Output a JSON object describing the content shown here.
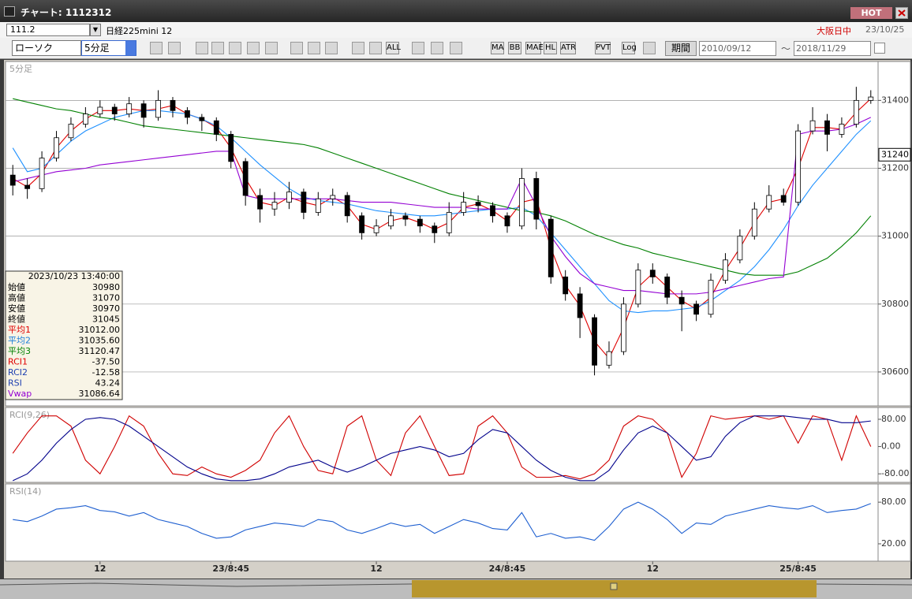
{
  "window": {
    "title": "チャート: 1112312",
    "hot": "HOT"
  },
  "symbol": {
    "code": "111.2",
    "name": "日経225mini 12",
    "session": "大阪日中",
    "date": "23/10/25"
  },
  "toolbar": {
    "chart_style": "ローソク",
    "interval": "5分足",
    "buttons": [
      "ALL",
      "MA",
      "BB",
      "MAE",
      "HL",
      "ATR",
      "PVT",
      "Log"
    ],
    "period": "期間",
    "from": "2010/09/12",
    "separator": "〜",
    "to": "2018/11/29"
  },
  "info_box": {
    "datetime": "2023/10/23 13:40:00",
    "rows": [
      {
        "label": "始値",
        "value": "30980",
        "color": "#000000"
      },
      {
        "label": "高値",
        "value": "31070",
        "color": "#000000"
      },
      {
        "label": "安値",
        "value": "30970",
        "color": "#000000"
      },
      {
        "label": "終値",
        "value": "31045",
        "color": "#000000"
      },
      {
        "label": "平均1",
        "value": "31012.00",
        "color": "#e00000"
      },
      {
        "label": "平均2",
        "value": "31035.60",
        "color": "#1e7fd8"
      },
      {
        "label": "平均3",
        "value": "31120.47",
        "color": "#008000"
      },
      {
        "label": "RCI1",
        "value": "-37.50",
        "color": "#e00000"
      },
      {
        "label": "RCI2",
        "value": "-12.58",
        "color": "#1e3fb0"
      },
      {
        "label": "RSI",
        "value": "43.24",
        "color": "#1e3fb0"
      },
      {
        "label": "Vwap",
        "value": "31086.64",
        "color": "#9400d3"
      }
    ]
  },
  "chart_data": [
    {
      "type": "candlestick",
      "title": "5分足",
      "categories": [
        null,
        null,
        null,
        null,
        null,
        null,
        "12",
        null,
        null,
        null,
        null,
        null,
        null,
        null,
        null,
        "23/8:45",
        null,
        null,
        null,
        null,
        null,
        null,
        null,
        null,
        null,
        "12",
        null,
        null,
        null,
        null,
        null,
        null,
        null,
        null,
        "24/8:45",
        null,
        null,
        null,
        null,
        null,
        null,
        null,
        null,
        null,
        "12",
        null,
        null,
        null,
        null,
        null,
        null,
        null,
        null,
        null,
        "25/8:45",
        null,
        null,
        null,
        null,
        null
      ],
      "open": [
        31180,
        31150,
        31140,
        31230,
        31290,
        31330,
        31360,
        31380,
        31360,
        31390,
        31350,
        31400,
        31370,
        31350,
        31340,
        31300,
        31220,
        31120,
        31080,
        31100,
        31130,
        31070,
        31110,
        31120,
        31060,
        31010,
        31030,
        31060,
        31050,
        31030,
        31010,
        31070,
        31100,
        31090,
        31060,
        31030,
        31170,
        31050,
        30880,
        30830,
        30760,
        30620,
        30660,
        30800,
        30900,
        30880,
        30820,
        30800,
        30770,
        30870,
        30930,
        31000,
        31080,
        31120,
        31100,
        31310,
        31340,
        31300,
        31330,
        31400
      ],
      "high": [
        31210,
        31170,
        31250,
        31310,
        31350,
        31380,
        31400,
        31390,
        31410,
        31400,
        31430,
        31410,
        31380,
        31360,
        31350,
        31310,
        31230,
        31140,
        31130,
        31160,
        31140,
        31130,
        31140,
        31130,
        31070,
        31050,
        31080,
        31070,
        31060,
        31040,
        31100,
        31130,
        31120,
        31100,
        31070,
        31200,
        31190,
        31060,
        30900,
        30850,
        30770,
        30690,
        30820,
        30920,
        30920,
        30890,
        30840,
        30810,
        30890,
        30950,
        31020,
        31100,
        31150,
        31140,
        31330,
        31380,
        31360,
        31350,
        31440,
        31430
      ],
      "low": [
        31120,
        31110,
        31130,
        31220,
        31280,
        31320,
        31350,
        31340,
        31350,
        31320,
        31340,
        31350,
        31330,
        31310,
        31280,
        31200,
        31090,
        31040,
        31060,
        31080,
        31050,
        31060,
        31090,
        31040,
        30990,
        31000,
        31020,
        31030,
        31010,
        30980,
        31000,
        31060,
        31070,
        31040,
        31010,
        31020,
        31020,
        30860,
        30810,
        30700,
        30590,
        30610,
        30650,
        30790,
        30860,
        30800,
        30720,
        30750,
        30760,
        30860,
        30920,
        30990,
        31070,
        31090,
        31090,
        31300,
        31250,
        31290,
        31320,
        31390
      ],
      "close": [
        31150,
        31140,
        31230,
        31290,
        31330,
        31360,
        31380,
        31360,
        31390,
        31350,
        31400,
        31370,
        31350,
        31340,
        31300,
        31220,
        31120,
        31080,
        31100,
        31130,
        31070,
        31110,
        31120,
        31060,
        31010,
        31030,
        31060,
        31050,
        31030,
        31010,
        31070,
        31100,
        31090,
        31060,
        31030,
        31170,
        31050,
        30880,
        30830,
        30760,
        30620,
        30660,
        30800,
        30900,
        30880,
        30820,
        30800,
        30770,
        30870,
        30930,
        31000,
        31080,
        31120,
        31100,
        31310,
        31340,
        31300,
        31330,
        31400,
        31410
      ],
      "up_color": "#ffffff",
      "down_color": "#000000",
      "series": [
        {
          "color": "#e00000",
          "values": [
            31170,
            31145,
            31185,
            31260,
            31310,
            31345,
            31370,
            31370,
            31375,
            31370,
            31375,
            31385,
            31360,
            31345,
            31320,
            31260,
            31170,
            31100,
            31090,
            31115,
            31100,
            31090,
            31115,
            31090,
            31035,
            31020,
            31045,
            31055,
            31040,
            31020,
            31040,
            31085,
            31095,
            31075,
            31045,
            31100,
            31110,
            30965,
            30855,
            30795,
            30690,
            30640,
            30730,
            30850,
            30890,
            30850,
            30810,
            30785,
            30820,
            30900,
            30965,
            31040,
            31100,
            31110,
            31200,
            31320,
            31320,
            31315,
            31365,
            31405
          ]
        },
        {
          "color": "#1e90ff",
          "values": [
            31260,
            31190,
            31200,
            31240,
            31280,
            31310,
            31330,
            31350,
            31360,
            31370,
            31370,
            31365,
            31360,
            31345,
            31325,
            31290,
            31250,
            31210,
            31175,
            31140,
            31115,
            31105,
            31100,
            31095,
            31085,
            31075,
            31070,
            31065,
            31060,
            31060,
            31065,
            31070,
            31075,
            31080,
            31080,
            31085,
            31060,
            31010,
            30960,
            30910,
            30860,
            30810,
            30780,
            30775,
            30780,
            30780,
            30785,
            30790,
            30810,
            30840,
            30870,
            30910,
            30960,
            31020,
            31090,
            31150,
            31200,
            31250,
            31300,
            31340
          ]
        },
        {
          "color": "#008000",
          "values": [
            31405,
            31395,
            31385,
            31375,
            31370,
            31360,
            31350,
            31345,
            31335,
            31325,
            31320,
            31315,
            31310,
            31305,
            31300,
            31295,
            31290,
            31285,
            31280,
            31275,
            31270,
            31260,
            31245,
            31230,
            31215,
            31200,
            31185,
            31170,
            31155,
            31140,
            31125,
            31115,
            31105,
            31095,
            31085,
            31075,
            31070,
            31060,
            31045,
            31025,
            31005,
            30990,
            30975,
            30965,
            30950,
            30940,
            30930,
            30920,
            30910,
            30900,
            30890,
            30885,
            30885,
            30885,
            30895,
            30915,
            30935,
            30970,
            31010,
            31060
          ]
        },
        {
          "color": "#9400d3",
          "values": [
            31160,
            31170,
            31180,
            31190,
            31195,
            31200,
            31210,
            31215,
            31220,
            31225,
            31230,
            31235,
            31240,
            31245,
            31250,
            31250,
            31120,
            31110,
            31110,
            31110,
            31110,
            31110,
            31110,
            31105,
            31100,
            31100,
            31100,
            31095,
            31090,
            31085,
            31085,
            31085,
            31080,
            31080,
            31080,
            31170,
            31090,
            31000,
            30940,
            30890,
            30860,
            30850,
            30840,
            30840,
            30835,
            30830,
            30830,
            30830,
            30835,
            30845,
            30855,
            30865,
            30875,
            30880,
            31300,
            31310,
            31310,
            31315,
            31330,
            31350
          ]
        }
      ],
      "ylim": [
        30500,
        31510
      ],
      "yticks": [
        31400,
        31200,
        31000,
        30800,
        30600
      ],
      "last_price": 31240,
      "grid": true
    },
    {
      "type": "line",
      "title": "RCI(9,26)",
      "series": [
        {
          "color": "#d00000",
          "values": [
            -20,
            40,
            90,
            90,
            60,
            -40,
            -80,
            0,
            90,
            60,
            -20,
            -80,
            -85,
            -60,
            -80,
            -90,
            -70,
            -40,
            40,
            90,
            0,
            -70,
            -80,
            60,
            90,
            -40,
            -85,
            40,
            90,
            0,
            -85,
            -80,
            60,
            90,
            40,
            -60,
            -90,
            -90,
            -85,
            -95,
            -80,
            -40,
            60,
            90,
            80,
            40,
            -90,
            -20,
            90,
            80,
            85,
            90,
            80,
            90,
            10,
            90,
            80,
            -40,
            90,
            0
          ]
        },
        {
          "color": "#00008b",
          "values": [
            -100,
            -80,
            -40,
            10,
            50,
            80,
            85,
            80,
            60,
            30,
            0,
            -30,
            -60,
            -80,
            -95,
            -100,
            -100,
            -95,
            -80,
            -60,
            -50,
            -40,
            -60,
            -75,
            -60,
            -40,
            -20,
            -10,
            0,
            -10,
            -30,
            -20,
            20,
            50,
            40,
            0,
            -40,
            -70,
            -90,
            -100,
            -100,
            -70,
            -10,
            40,
            60,
            40,
            0,
            -40,
            -30,
            30,
            70,
            90,
            90,
            90,
            85,
            80,
            80,
            70,
            70,
            75
          ]
        }
      ],
      "ylim": [
        -105,
        110
      ],
      "yticks": [
        {
          "value": 80,
          "label": "80.00"
        },
        {
          "value": 0,
          "label": "0.00"
        },
        {
          "value": -80,
          "label": "-80.00"
        }
      ]
    },
    {
      "type": "line",
      "title": "RSI(14)",
      "series": [
        {
          "color": "#1e5fd0",
          "values": [
            55,
            52,
            60,
            70,
            72,
            75,
            68,
            66,
            60,
            65,
            55,
            50,
            45,
            35,
            28,
            30,
            40,
            45,
            50,
            48,
            45,
            55,
            52,
            40,
            35,
            42,
            50,
            45,
            48,
            35,
            45,
            55,
            50,
            42,
            40,
            65,
            30,
            35,
            28,
            30,
            25,
            45,
            70,
            80,
            70,
            55,
            35,
            50,
            48,
            60,
            65,
            70,
            75,
            72,
            70,
            75,
            65,
            68,
            70,
            78
          ]
        }
      ],
      "ylim": [
        -5,
        104
      ],
      "yticks": [
        {
          "value": 80,
          "label": "80.00"
        },
        {
          "value": 20,
          "label": "20.00"
        }
      ]
    }
  ]
}
